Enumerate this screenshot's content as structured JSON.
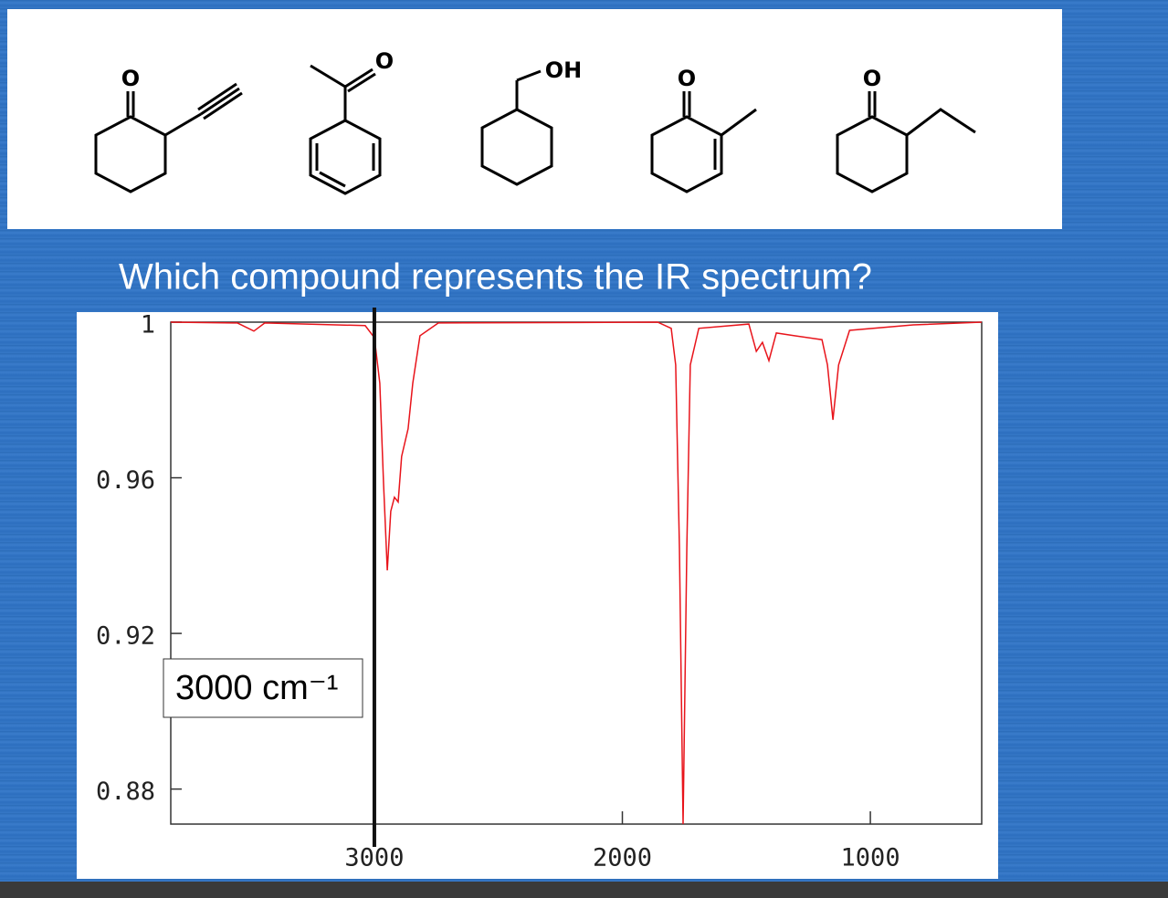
{
  "structures": [
    {
      "atoms": [
        "O"
      ]
    },
    {
      "atoms": [
        "O"
      ]
    },
    {
      "atoms": [
        "OH"
      ]
    },
    {
      "atoms": [
        "O"
      ]
    },
    {
      "atoms": [
        "O"
      ]
    }
  ],
  "chart_data": {
    "type": "line",
    "title": "Which compound represents the IR spectrum?",
    "x": [
      3821,
      3552,
      3486,
      3442,
      3037,
      3000,
      2978,
      2963,
      2948,
      2934,
      2919,
      2904,
      2890,
      2864,
      2845,
      2816,
      2742,
      1858,
      1803,
      1785,
      1770,
      1755,
      1740,
      1726,
      1692,
      1490,
      1460,
      1435,
      1409,
      1379,
      1306,
      1195,
      1173,
      1151,
      1128,
      1084,
      827,
      551
    ],
    "values": [
      1.0,
      0.9998,
      0.9977,
      0.9998,
      0.9991,
      0.996,
      0.9843,
      0.9585,
      0.9362,
      0.9514,
      0.955,
      0.9538,
      0.9655,
      0.9726,
      0.9843,
      0.9965,
      0.9998,
      1.0,
      0.9984,
      0.989,
      0.942,
      0.871,
      0.942,
      0.989,
      0.9984,
      0.9995,
      0.9925,
      0.9948,
      0.9901,
      0.9972,
      0.9965,
      0.9955,
      0.989,
      0.9749,
      0.989,
      0.9979,
      0.9993,
      1.0
    ],
    "color": "#e8141b",
    "xlim": [
      3821,
      551
    ],
    "xticks": [
      3000,
      2000,
      1000
    ],
    "ylim": [
      0.871,
      1
    ],
    "yticks": [
      0.88,
      0.92,
      0.96,
      1
    ],
    "annotation": {
      "x": 3000,
      "label": "3000 cm⁻¹"
    }
  }
}
